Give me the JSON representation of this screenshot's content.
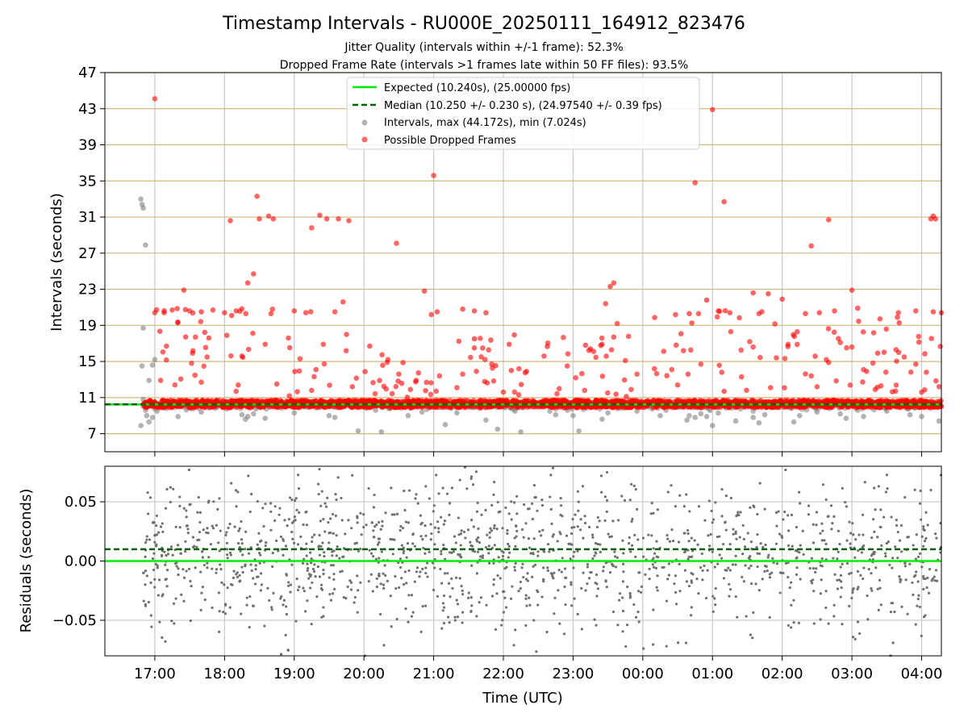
{
  "chart_data": [
    {
      "type": "scatter",
      "title": "Timestamp Intervals - RU000E_20250111_164912_823476",
      "subtitle_lines": [
        "Jitter Quality (intervals within +/-1 frame): 52.3%",
        "Dropped Frame Rate (intervals >1 frames late within 50 FF files): 93.5%"
      ],
      "xlabel": "",
      "ylabel": "Intervals (seconds)",
      "x_start": "16:17",
      "x_end": "04:17",
      "xticks": [
        "17:00",
        "18:00",
        "19:00",
        "20:00",
        "21:00",
        "22:00",
        "23:00",
        "00:00",
        "01:00",
        "02:00",
        "03:00",
        "04:00"
      ],
      "ylim": [
        5,
        47
      ],
      "yticks": [
        7,
        11,
        15,
        19,
        23,
        27,
        31,
        35,
        39,
        43,
        47
      ],
      "grid": true,
      "legend_placement": "upper center",
      "legend": [
        "Expected (10.240s), (25.00000 fps)",
        "Median (10.250 +/- 0.230 s), (24.97540 +/- 0.39 fps)",
        "Intervals, max (44.172s), min (7.024s)",
        "Possible Dropped Frames"
      ],
      "expected_line": 10.24,
      "median_line": 10.25,
      "colors": {
        "expected": "#00ee00",
        "median": "#006400",
        "intervals": "#808080",
        "dropped": "#ff0000",
        "hgrid": "#d4b87a",
        "vgrid": "#c8c8c8"
      },
      "series": [
        {
          "name": "Intervals, max (44.172s), min (7.024s)",
          "points": [
            [
              "16:48",
              33.0
            ],
            [
              "16:49",
              32.4
            ],
            [
              "16:50",
              32.0
            ],
            [
              "16:50",
              18.7
            ],
            [
              "16:49",
              14.5
            ],
            [
              "16:52",
              27.9
            ],
            [
              "16:55",
              12.9
            ],
            [
              "16:58",
              14.6
            ],
            [
              "17:00",
              15.2
            ],
            [
              "16:50",
              10.8
            ],
            [
              "16:52",
              9.6
            ],
            [
              "16:53",
              9.0
            ],
            [
              "16:55",
              8.3
            ],
            [
              "16:48",
              7.9
            ],
            [
              "16:58",
              8.8
            ],
            [
              "17:02",
              9.5
            ],
            [
              "17:10",
              9.8
            ],
            [
              "17:20",
              8.9
            ],
            [
              "17:40",
              9.4
            ],
            [
              "18:15",
              9.1
            ],
            [
              "18:18",
              8.6
            ],
            [
              "18:20",
              8.9
            ],
            [
              "18:25",
              9.2
            ],
            [
              "18:35",
              8.7
            ],
            [
              "19:00",
              9.3
            ],
            [
              "19:30",
              9.0
            ],
            [
              "19:35",
              8.8
            ],
            [
              "19:55",
              7.3
            ],
            [
              "20:10",
              9.6
            ],
            [
              "20:15",
              7.2
            ],
            [
              "20:38",
              9.0
            ],
            [
              "20:50",
              9.4
            ],
            [
              "21:10",
              8.0
            ],
            [
              "21:20",
              9.3
            ],
            [
              "21:40",
              9.8
            ],
            [
              "21:45",
              8.5
            ],
            [
              "21:55",
              7.5
            ],
            [
              "22:10",
              9.5
            ],
            [
              "22:15",
              7.2
            ],
            [
              "22:40",
              9.9
            ],
            [
              "22:45",
              9.1
            ],
            [
              "22:55",
              9.6
            ],
            [
              "23:00",
              9.0
            ],
            [
              "23:05",
              7.3
            ],
            [
              "23:25",
              8.6
            ],
            [
              "23:30",
              9.3
            ],
            [
              "23:55",
              9.5
            ],
            [
              "00:15",
              9.0
            ],
            [
              "00:20",
              9.6
            ],
            [
              "00:38",
              8.5
            ],
            [
              "00:40",
              9.0
            ],
            [
              "00:45",
              8.8
            ],
            [
              "00:50",
              9.2
            ],
            [
              "00:55",
              8.9
            ],
            [
              "01:00",
              7.9
            ],
            [
              "01:05",
              9.3
            ],
            [
              "01:20",
              8.4
            ],
            [
              "01:35",
              8.8
            ],
            [
              "01:40",
              8.2
            ],
            [
              "01:45",
              9.1
            ],
            [
              "02:10",
              8.3
            ],
            [
              "02:15",
              9.0
            ],
            [
              "02:30",
              9.4
            ],
            [
              "02:50",
              9.2
            ],
            [
              "02:55",
              8.7
            ],
            [
              "03:05",
              9.6
            ],
            [
              "03:10",
              8.9
            ],
            [
              "03:30",
              9.5
            ],
            [
              "03:50",
              9.1
            ],
            [
              "04:00",
              8.9
            ],
            [
              "04:15",
              8.4
            ]
          ]
        },
        {
          "name": "Possible Dropped Frames",
          "points": [
            [
              "17:00",
              44.1
            ],
            [
              "18:05",
              30.6
            ],
            [
              "18:28",
              33.3
            ],
            [
              "18:30",
              30.8
            ],
            [
              "18:38",
              31.1
            ],
            [
              "18:42",
              30.8
            ],
            [
              "18:20",
              23.7
            ],
            [
              "18:25",
              24.7
            ],
            [
              "19:15",
              29.8
            ],
            [
              "19:22",
              31.2
            ],
            [
              "19:28",
              30.8
            ],
            [
              "19:38",
              30.8
            ],
            [
              "19:47",
              30.6
            ],
            [
              "20:28",
              28.1
            ],
            [
              "20:52",
              22.8
            ],
            [
              "20:58",
              20.2
            ],
            [
              "21:00",
              35.6
            ],
            [
              "21:03",
              20.5
            ],
            [
              "23:32",
              23.3
            ],
            [
              "23:35",
              23.7
            ],
            [
              "23:28",
              21.4
            ],
            [
              "23:38",
              19.2
            ],
            [
              "00:45",
              34.8
            ],
            [
              "00:48",
              20.3
            ],
            [
              "01:00",
              42.9
            ],
            [
              "01:10",
              32.7
            ],
            [
              "01:35",
              22.6
            ],
            [
              "01:48",
              22.5
            ],
            [
              "02:25",
              27.8
            ],
            [
              "02:40",
              30.7
            ],
            [
              "03:00",
              22.9
            ],
            [
              "04:08",
              30.8
            ],
            [
              "04:10",
              31.1
            ],
            [
              "04:12",
              30.8
            ],
            [
              "17:00",
              20.4
            ],
            [
              "17:08",
              20.4
            ],
            [
              "17:15",
              20.7
            ],
            [
              "17:25",
              22.9
            ],
            [
              "17:30",
              20.6
            ],
            [
              "17:40",
              20.5
            ],
            [
              "17:50",
              20.7
            ],
            [
              "18:00",
              20.4
            ],
            [
              "18:10",
              20.6
            ],
            [
              "18:40",
              20.3
            ],
            [
              "19:00",
              20.6
            ],
            [
              "19:10",
              20.4
            ],
            [
              "19:35",
              20.5
            ],
            [
              "19:42",
              21.6
            ],
            [
              "21:25",
              20.8
            ],
            [
              "21:35",
              20.6
            ],
            [
              "21:45",
              20.4
            ],
            [
              "00:40",
              20.3
            ],
            [
              "00:55",
              21.8
            ],
            [
              "01:05",
              20.6
            ],
            [
              "01:15",
              20.4
            ],
            [
              "01:40",
              20.3
            ],
            [
              "02:00",
              21.9
            ],
            [
              "02:20",
              20.3
            ],
            [
              "02:32",
              20.4
            ],
            [
              "02:45",
              20.6
            ],
            [
              "03:05",
              20.9
            ],
            [
              "03:40",
              20.4
            ],
            [
              "03:55",
              20.6
            ],
            [
              "04:10",
              20.5
            ],
            [
              "04:17",
              20.4
            ],
            [
              "17:10",
              16.7
            ],
            [
              "17:35",
              17.7
            ],
            [
              "17:45",
              15.5
            ],
            [
              "18:02",
              17.9
            ],
            [
              "18:15",
              15.6
            ],
            [
              "18:35",
              16.9
            ],
            [
              "18:55",
              17.6
            ],
            [
              "19:05",
              15.3
            ],
            [
              "19:25",
              16.9
            ],
            [
              "19:45",
              18.0
            ],
            [
              "20:05",
              16.7
            ],
            [
              "20:20",
              14.9
            ],
            [
              "20:30",
              13.6
            ],
            [
              "20:45",
              12.9
            ],
            [
              "21:05",
              13.4
            ],
            [
              "21:25",
              13.6
            ],
            [
              "21:35",
              16.5
            ],
            [
              "21:50",
              14.7
            ],
            [
              "22:05",
              16.9
            ],
            [
              "22:20",
              13.9
            ],
            [
              "22:35",
              15.6
            ],
            [
              "22:55",
              14.5
            ],
            [
              "23:15",
              16.4
            ],
            [
              "23:25",
              16.9
            ],
            [
              "23:35",
              17.7
            ],
            [
              "23:45",
              15.1
            ],
            [
              "23:55",
              13.6
            ],
            [
              "00:10",
              14.2
            ],
            [
              "00:25",
              14.1
            ],
            [
              "00:35",
              16.2
            ],
            [
              "00:50",
              14.7
            ],
            [
              "01:08",
              13.8
            ],
            [
              "01:25",
              13.3
            ],
            [
              "01:35",
              16.6
            ],
            [
              "01:55",
              15.4
            ],
            [
              "02:05",
              16.9
            ],
            [
              "02:25",
              13.4
            ],
            [
              "02:38",
              15.2
            ],
            [
              "02:50",
              17.1
            ],
            [
              "03:00",
              16.6
            ],
            [
              "03:10",
              14.1
            ],
            [
              "03:25",
              12.3
            ],
            [
              "03:38",
              16.3
            ],
            [
              "03:45",
              15.5
            ],
            [
              "03:55",
              14.7
            ],
            [
              "04:15",
              12.2
            ],
            [
              "17:05",
              12.9
            ],
            [
              "17:40",
              12.7
            ],
            [
              "18:10",
              11.7
            ],
            [
              "18:45",
              12.5
            ],
            [
              "19:15",
              11.8
            ],
            [
              "19:50",
              12.2
            ],
            [
              "20:40",
              11.9
            ],
            [
              "21:20",
              12.1
            ],
            [
              "22:00",
              11.6
            ],
            [
              "23:10",
              11.8
            ],
            [
              "23:50",
              11.9
            ],
            [
              "00:30",
              12.4
            ],
            [
              "01:10",
              11.7
            ],
            [
              "01:50",
              12.1
            ],
            [
              "02:30",
              12.2
            ],
            [
              "03:20",
              11.9
            ],
            [
              "04:00",
              11.6
            ]
          ]
        },
        {
          "name": "Possible Dropped Frames (dense band)",
          "x_range": [
            "16:50",
            "04:17"
          ],
          "y_range": [
            9.9,
            10.7
          ],
          "note_points": 2400
        }
      ]
    },
    {
      "type": "scatter",
      "ylabel": "Residuals (seconds)",
      "xlabel": "Time (UTC)",
      "ylim": [
        -0.08,
        0.08
      ],
      "yticks": [
        -0.05,
        0.0,
        0.05
      ],
      "ytick_labels": [
        "−0.05",
        "0.00",
        "0.05"
      ],
      "xticks": [
        "17:00",
        "18:00",
        "19:00",
        "20:00",
        "21:00",
        "22:00",
        "23:00",
        "00:00",
        "01:00",
        "02:00",
        "03:00",
        "04:00"
      ],
      "expected_line": 0.0,
      "median_line": 0.01,
      "residual_points_approx": 1500,
      "residual_spread": 0.08
    }
  ]
}
